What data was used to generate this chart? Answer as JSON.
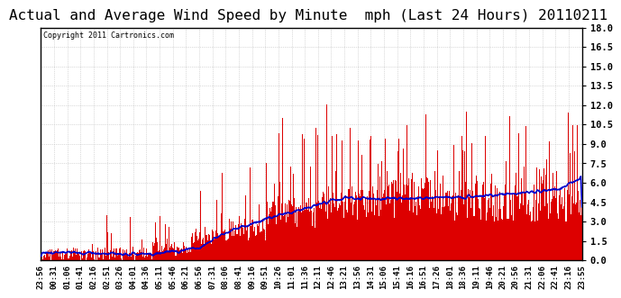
{
  "n_minutes": 1440,
  "title": "Actual and Average Wind Speed by Minute  mph (Last 24 Hours) 20110211",
  "copyright_text": "Copyright 2011 Cartronics.com",
  "bar_color": "#dd0000",
  "line_color": "#0000cc",
  "ylim": [
    0.0,
    18.0
  ],
  "yticks": [
    0.0,
    1.5,
    3.0,
    4.5,
    6.0,
    7.5,
    9.0,
    10.5,
    12.0,
    13.5,
    15.0,
    16.5,
    18.0
  ],
  "background_color": "#ffffff",
  "grid_color": "#bbbbbb",
  "title_fontsize": 11.5,
  "tick_fontsize": 6.5,
  "copyright_fontsize": 6.0,
  "line_width": 1.2
}
